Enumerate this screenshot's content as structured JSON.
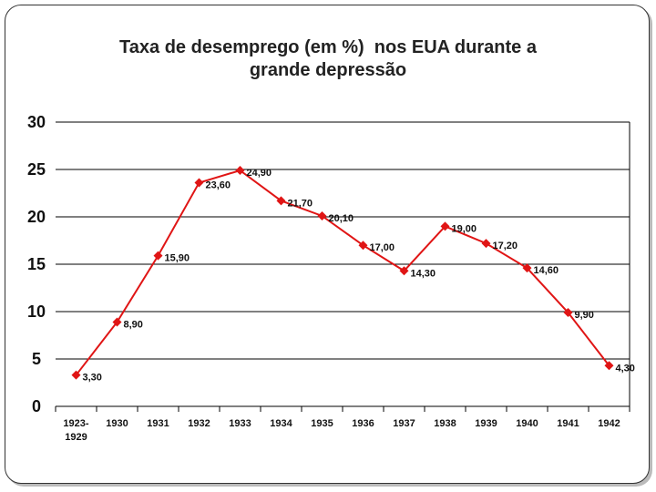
{
  "chart_data": {
    "type": "line",
    "title_line1": "Taxa de desemprego (em %)  nos EUA durante a",
    "title_line2": "grande depressão",
    "categories": [
      [
        "1923-",
        "1929"
      ],
      [
        "1930"
      ],
      [
        "1931"
      ],
      [
        "1932"
      ],
      [
        "1933"
      ],
      [
        "1934"
      ],
      [
        "1935"
      ],
      [
        "1936"
      ],
      [
        "1937"
      ],
      [
        "1938"
      ],
      [
        "1939"
      ],
      [
        "1940"
      ],
      [
        "1941"
      ],
      [
        "1942"
      ]
    ],
    "values": [
      3.3,
      8.9,
      15.9,
      23.6,
      24.9,
      21.7,
      20.1,
      17.0,
      14.3,
      19.0,
      17.2,
      14.6,
      9.9,
      4.3
    ],
    "data_labels": [
      "3,30",
      "8,90",
      "15,90",
      "23,60",
      "24,90",
      "21,70",
      "20,10",
      "17,00",
      "14,30",
      "19,00",
      "17,20",
      "14,60",
      "9,90",
      "4,30"
    ],
    "yticks": [
      "0",
      "5",
      "10",
      "15",
      "20",
      "25",
      "30"
    ],
    "ylim": [
      0,
      30
    ],
    "ytick_step": 5,
    "grid": true,
    "legend": "none",
    "series_color": "#e01515",
    "grid_color": "#000000"
  }
}
